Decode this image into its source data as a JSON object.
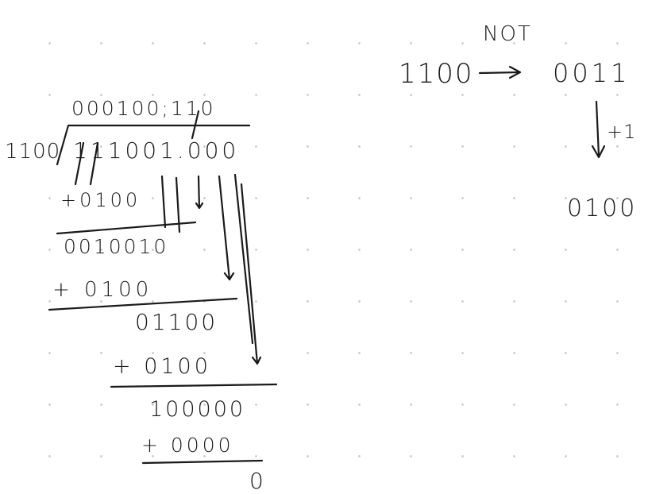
{
  "division": {
    "quotient": "000100;110",
    "divisor": "1100",
    "dividend": "111001.000",
    "steps": [
      {
        "operand": "+0100",
        "result": "0010010"
      },
      {
        "operand": "+ 0100",
        "result": "01100"
      },
      {
        "operand": "+ 0100",
        "result": "100000"
      },
      {
        "operand": "+ 0000",
        "result": "0"
      }
    ]
  },
  "complement": {
    "original": "1100",
    "operation_label": "NOT",
    "inverted": "0011",
    "increment_label": "+1",
    "result": "0100"
  },
  "colors": {
    "ink": "#1a1a1a",
    "dots": "#c7c7c7",
    "background": "#ffffff"
  }
}
